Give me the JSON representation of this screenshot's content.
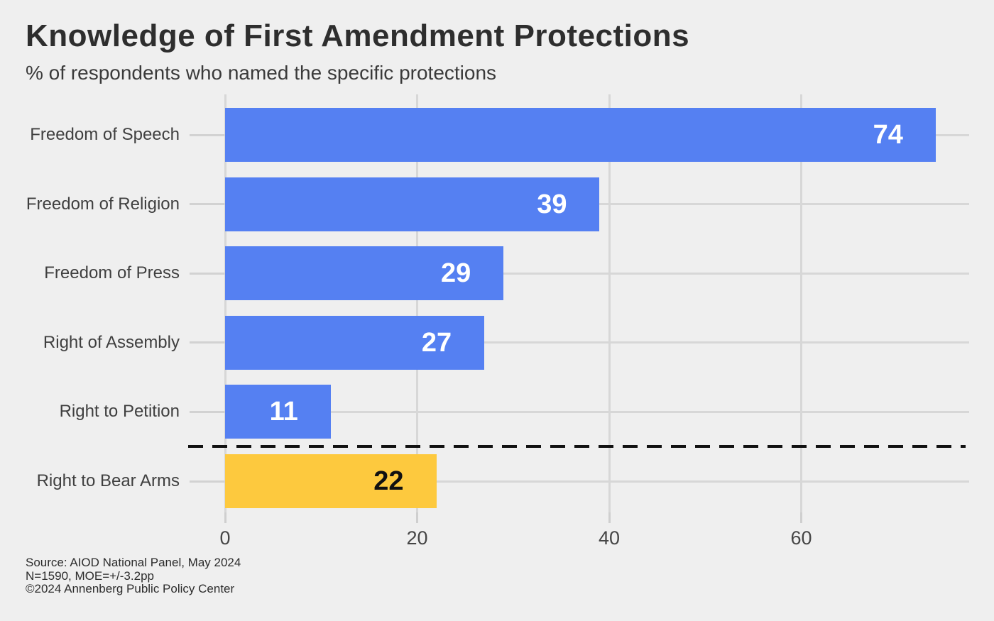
{
  "header": {
    "title": "Knowledge of First Amendment Protections",
    "subtitle": "% of respondents who named the specific protections"
  },
  "chart_data": {
    "type": "bar",
    "orientation": "horizontal",
    "title": "Knowledge of First Amendment Protections",
    "subtitle": "% of respondents who named the specific protections",
    "categories": [
      "Freedom of Speech",
      "Freedom of Religion",
      "Freedom of Press",
      "Right of Assembly",
      "Right to Petition",
      "Right to Bear Arms"
    ],
    "values": [
      74,
      39,
      29,
      27,
      11,
      22
    ],
    "bar_colors": [
      "#5580F2",
      "#5580F2",
      "#5580F2",
      "#5580F2",
      "#5580F2",
      "#FDC93E"
    ],
    "value_label_colors": [
      "#FFFFFF",
      "#FFFFFF",
      "#FFFFFF",
      "#FFFFFF",
      "#FFFFFF",
      "#111111"
    ],
    "xticks": [
      0,
      20,
      40,
      60
    ],
    "xlim": [
      0,
      77.5
    ],
    "xlabel": "",
    "ylabel": "",
    "grid": true,
    "legend": "none",
    "separator": {
      "after_category": "Right to Petition",
      "style": "dashed",
      "color": "#111111"
    }
  },
  "footer": {
    "lines": [
      "Source: AIOD National Panel, May 2024",
      "N=1590, MOE=+/-3.2pp",
      "©2024 Annenberg Public Policy Center"
    ]
  },
  "colors": {
    "background": "#EFEFEF",
    "bar_blue": "#5580F2",
    "bar_gold": "#FDC93E",
    "gridline": "#D7D7D7",
    "separator": "#111111",
    "title_text": "#2e2e2e",
    "axis_text": "#454545"
  }
}
